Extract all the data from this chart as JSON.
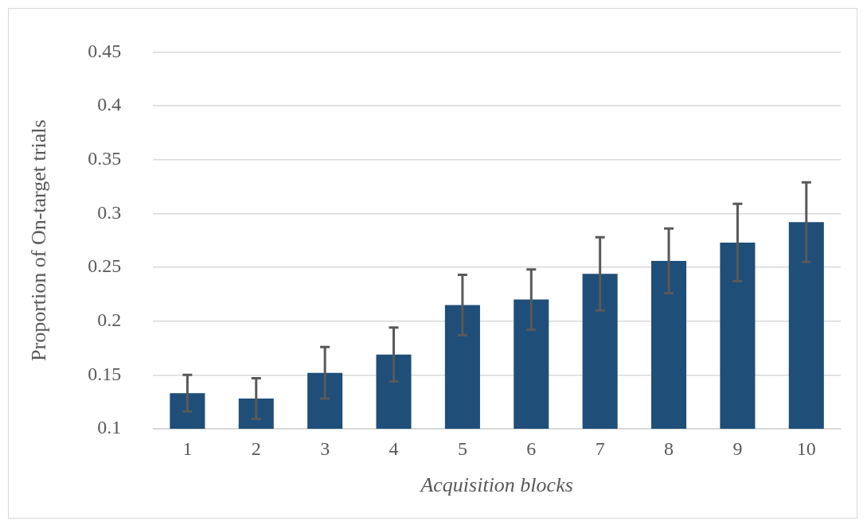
{
  "chart_data": {
    "type": "bar",
    "xlabel": "Acquisition blocks",
    "ylabel": "Proportion of On-target trials",
    "categories": [
      "1",
      "2",
      "3",
      "4",
      "5",
      "6",
      "7",
      "8",
      "9",
      "10"
    ],
    "values": [
      0.133,
      0.128,
      0.152,
      0.169,
      0.215,
      0.22,
      0.244,
      0.256,
      0.273,
      0.292
    ],
    "errors": [
      0.017,
      0.019,
      0.024,
      0.025,
      0.028,
      0.028,
      0.034,
      0.03,
      0.036,
      0.037
    ],
    "color": "#1f4e79",
    "ylim": [
      0.1,
      0.45
    ],
    "yticks": [
      0.1,
      0.15,
      0.2,
      0.25,
      0.3,
      0.35,
      0.4,
      0.45
    ],
    "grid": "y"
  }
}
